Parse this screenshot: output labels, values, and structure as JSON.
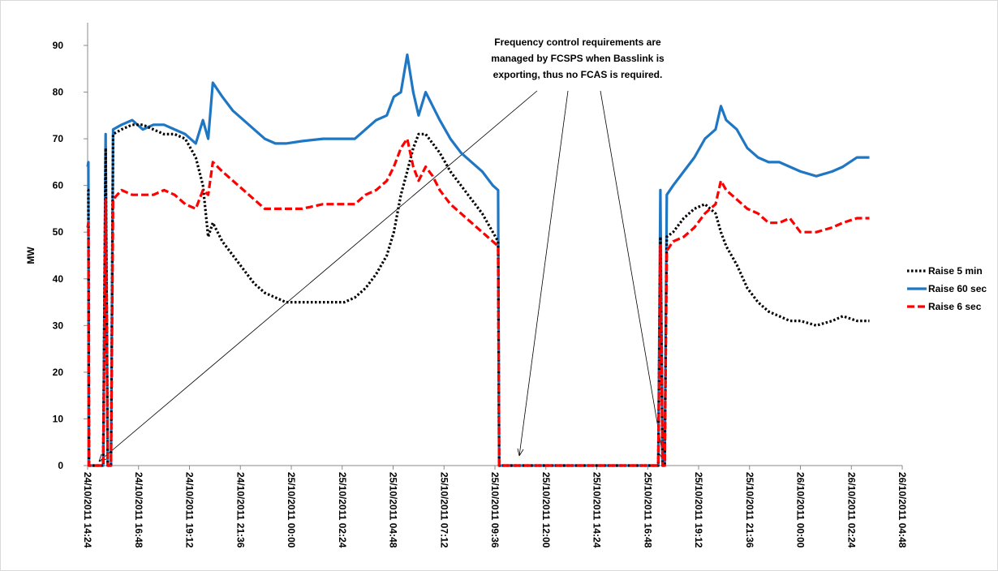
{
  "chart_data": {
    "type": "line",
    "y_label": "MW",
    "annotation": [
      "Frequency control requirements are",
      "managed by FCSPS when Basslink is",
      "exporting, thus no FCAS is required."
    ],
    "xlim": [
      "24/10/2011 14:24",
      "26/10/2011 04:48"
    ],
    "xticks": [
      "24/10/2011 14:24",
      "24/10/2011 16:48",
      "24/10/2011 19:12",
      "24/10/2011 21:36",
      "25/10/2011 00:00",
      "25/10/2011 02:24",
      "25/10/2011 04:48",
      "25/10/2011 07:12",
      "25/10/2011 09:36",
      "25/10/2011 12:00",
      "25/10/2011 14:24",
      "25/10/2011 16:48",
      "25/10/2011 19:12",
      "25/10/2011 21:36",
      "26/10/2011 00:00",
      "26/10/2011 02:24",
      "26/10/2011 04:48"
    ],
    "ylim": [
      0,
      90
    ],
    "yticks": [
      0,
      10,
      20,
      30,
      40,
      50,
      60,
      70,
      80,
      90
    ],
    "grid": false,
    "legend": "right",
    "x": [
      "24/10/2011 14:24",
      "24/10/2011 14:26",
      "24/10/2011 14:28",
      "24/10/2011 15:08",
      "24/10/2011 15:15",
      "24/10/2011 15:21",
      "24/10/2011 15:30",
      "24/10/2011 15:36",
      "24/10/2011 16:00",
      "24/10/2011 16:30",
      "24/10/2011 17:00",
      "24/10/2011 17:30",
      "24/10/2011 18:00",
      "24/10/2011 18:30",
      "24/10/2011 19:00",
      "24/10/2011 19:30",
      "24/10/2011 19:50",
      "24/10/2011 20:05",
      "24/10/2011 20:18",
      "24/10/2011 20:45",
      "24/10/2011 21:15",
      "24/10/2011 21:45",
      "24/10/2011 22:15",
      "24/10/2011 22:45",
      "24/10/2011 23:15",
      "24/10/2011 23:45",
      "25/10/2011 00:30",
      "25/10/2011 01:30",
      "25/10/2011 02:30",
      "25/10/2011 03:00",
      "25/10/2011 03:30",
      "25/10/2011 04:00",
      "25/10/2011 04:30",
      "25/10/2011 04:50",
      "25/10/2011 05:10",
      "25/10/2011 05:28",
      "25/10/2011 05:45",
      "25/10/2011 06:00",
      "25/10/2011 06:20",
      "25/10/2011 06:40",
      "25/10/2011 07:00",
      "25/10/2011 07:30",
      "25/10/2011 08:00",
      "25/10/2011 08:30",
      "25/10/2011 09:00",
      "25/10/2011 09:30",
      "25/10/2011 09:45",
      "25/10/2011 09:48",
      "25/10/2011 17:18",
      "25/10/2011 17:24",
      "25/10/2011 17:30",
      "25/10/2011 17:36",
      "25/10/2011 17:42",
      "25/10/2011 18:00",
      "25/10/2011 18:30",
      "25/10/2011 19:00",
      "25/10/2011 19:30",
      "25/10/2011 20:00",
      "25/10/2011 20:15",
      "25/10/2011 20:30",
      "25/10/2011 21:00",
      "25/10/2011 21:30",
      "25/10/2011 22:00",
      "25/10/2011 22:30",
      "25/10/2011 23:00",
      "25/10/2011 23:30",
      "26/10/2011 00:00",
      "26/10/2011 00:45",
      "26/10/2011 01:30",
      "26/10/2011 02:00",
      "26/10/2011 02:40",
      "26/10/2011 03:15"
    ],
    "series": [
      {
        "name": "Raise 5 min",
        "color": "#000000",
        "style": "dotted",
        "values": [
          59,
          59,
          0,
          0,
          68,
          0,
          0,
          71,
          72,
          73,
          73,
          72,
          71,
          71,
          70,
          66,
          60,
          49,
          52,
          48,
          45,
          42,
          39,
          37,
          36,
          35,
          35,
          35,
          35,
          36,
          38,
          41,
          45,
          50,
          58,
          63,
          68,
          71,
          71,
          69,
          67,
          63,
          60,
          57,
          54,
          50,
          48,
          0,
          0,
          49,
          0,
          0,
          49,
          50,
          53,
          55,
          56,
          54,
          50,
          47,
          43,
          38,
          35,
          33,
          32,
          31,
          31,
          30,
          31,
          32,
          31,
          31
        ]
      },
      {
        "name": "Raise 60 sec",
        "color": "#1f77c4",
        "style": "solid",
        "values": [
          64,
          65,
          0,
          0,
          71,
          0,
          0,
          72,
          73,
          74,
          72,
          73,
          73,
          72,
          71,
          69,
          74,
          70,
          82,
          79,
          76,
          74,
          72,
          70,
          69,
          69,
          69.5,
          70,
          70,
          70,
          72,
          74,
          75,
          79,
          80,
          88,
          80,
          75,
          80,
          77,
          74,
          70,
          67,
          65,
          63,
          60,
          59,
          0,
          0,
          59,
          0,
          0,
          58,
          60,
          63,
          66,
          70,
          72,
          77,
          74,
          72,
          68,
          66,
          65,
          65,
          64,
          63,
          62,
          63,
          64,
          66,
          66
        ]
      },
      {
        "name": "Raise 6 sec",
        "color": "#ff0000",
        "style": "dashed",
        "values": [
          51,
          52,
          0,
          0,
          57,
          0,
          0,
          57,
          59,
          58,
          58,
          58,
          59,
          58,
          56,
          55,
          59,
          58,
          65,
          63,
          61,
          59,
          57,
          55,
          55,
          55,
          55,
          56,
          56,
          56,
          58,
          59,
          61,
          64,
          68,
          70,
          64,
          61,
          64,
          62,
          59,
          56,
          54,
          52,
          50,
          48,
          47,
          0,
          0,
          47,
          0,
          0,
          46,
          48,
          49,
          51,
          54,
          56,
          61,
          59,
          57,
          55,
          54,
          52,
          52,
          53,
          50,
          50,
          51,
          52,
          53,
          53
        ]
      }
    ]
  }
}
